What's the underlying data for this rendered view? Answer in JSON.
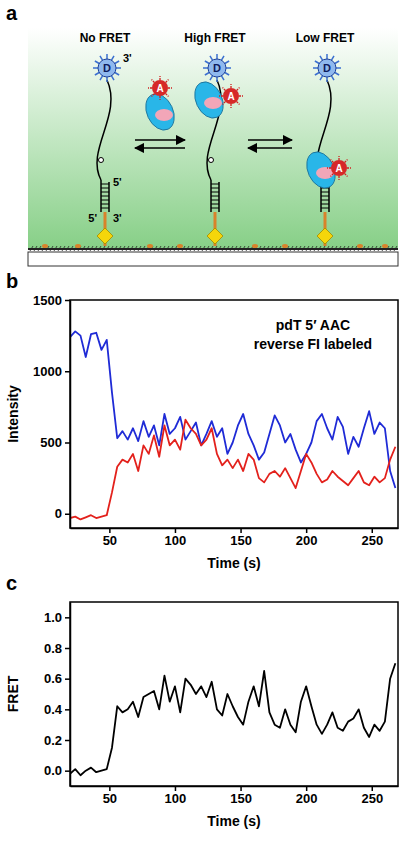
{
  "diagram": {
    "panel": "a",
    "states": [
      "No FRET",
      "High FRET",
      "Low FRET"
    ],
    "donor": "D",
    "acceptor": "A",
    "strand_ends": [
      "3'",
      "5'",
      "5'",
      "3'"
    ]
  },
  "chart_data": [
    {
      "panel": "b",
      "type": "line",
      "annotations": [
        "pdT 5′ AAC",
        "reverse FI labeled"
      ],
      "xlabel": "Time (s)",
      "ylabel": "Intensity",
      "xlim": [
        20,
        270
      ],
      "xticks": [
        50,
        100,
        150,
        200,
        250
      ],
      "ylim": [
        -100,
        1500
      ],
      "yticks": [
        0,
        500,
        1000,
        1500
      ],
      "x": [
        20,
        24,
        28,
        32,
        36,
        40,
        44,
        48,
        52,
        56,
        60,
        64,
        68,
        72,
        76,
        80,
        84,
        88,
        92,
        96,
        100,
        104,
        108,
        112,
        116,
        120,
        124,
        128,
        132,
        136,
        140,
        144,
        148,
        152,
        156,
        160,
        164,
        168,
        172,
        176,
        180,
        184,
        188,
        192,
        196,
        200,
        204,
        208,
        212,
        216,
        220,
        224,
        228,
        232,
        236,
        240,
        244,
        248,
        252,
        256,
        260,
        264,
        268
      ],
      "series": [
        {
          "color": "#1f2bd6",
          "values": [
            1240,
            1280,
            1250,
            1100,
            1260,
            1270,
            1150,
            1220,
            850,
            530,
            580,
            520,
            600,
            510,
            650,
            540,
            620,
            480,
            700,
            560,
            600,
            680,
            520,
            580,
            640,
            480,
            560,
            650,
            540,
            600,
            420,
            500,
            620,
            700,
            560,
            480,
            380,
            430,
            560,
            690,
            620,
            500,
            560,
            450,
            360,
            420,
            500,
            650,
            700,
            600,
            520,
            680,
            610,
            420,
            540,
            470,
            600,
            720,
            560,
            640,
            600,
            300,
            180
          ]
        },
        {
          "color": "#e3211c",
          "values": [
            -30,
            -20,
            -40,
            -25,
            -10,
            -30,
            -20,
            -10,
            150,
            330,
            380,
            360,
            420,
            300,
            480,
            420,
            550,
            400,
            620,
            480,
            520,
            450,
            660,
            600,
            560,
            480,
            520,
            600,
            420,
            340,
            380,
            320,
            380,
            300,
            420,
            380,
            250,
            220,
            280,
            300,
            260,
            320,
            250,
            180,
            300,
            420,
            360,
            280,
            220,
            240,
            300,
            260,
            230,
            200,
            250,
            300,
            220,
            200,
            260,
            220,
            250,
            380,
            470
          ]
        }
      ]
    },
    {
      "panel": "c",
      "type": "line",
      "xlabel": "Time (s)",
      "ylabel": "FRET",
      "xlim": [
        20,
        270
      ],
      "xticks": [
        50,
        100,
        150,
        200,
        250
      ],
      "ylim": [
        -0.1,
        1.1
      ],
      "yticks": [
        {
          "value": 0,
          "label": "0.0"
        },
        0.2,
        0.4,
        0.6,
        0.8,
        {
          "value": 1,
          "label": "1.0"
        }
      ],
      "x": [
        20,
        24,
        28,
        32,
        36,
        40,
        44,
        48,
        52,
        56,
        60,
        64,
        68,
        72,
        76,
        80,
        84,
        88,
        92,
        96,
        100,
        104,
        108,
        112,
        116,
        120,
        124,
        128,
        132,
        136,
        140,
        144,
        148,
        152,
        156,
        160,
        164,
        168,
        172,
        176,
        180,
        184,
        188,
        192,
        196,
        200,
        204,
        208,
        212,
        216,
        220,
        224,
        228,
        232,
        236,
        240,
        244,
        248,
        252,
        256,
        260,
        264,
        268
      ],
      "series": [
        {
          "color": "#000000",
          "values": [
            -0.02,
            0.01,
            -0.03,
            0.0,
            0.02,
            -0.01,
            0.0,
            0.01,
            0.15,
            0.42,
            0.38,
            0.4,
            0.45,
            0.35,
            0.48,
            0.5,
            0.52,
            0.4,
            0.62,
            0.45,
            0.55,
            0.38,
            0.6,
            0.56,
            0.5,
            0.55,
            0.48,
            0.58,
            0.4,
            0.36,
            0.5,
            0.42,
            0.35,
            0.3,
            0.45,
            0.55,
            0.42,
            0.65,
            0.38,
            0.3,
            0.28,
            0.4,
            0.3,
            0.25,
            0.45,
            0.55,
            0.42,
            0.3,
            0.24,
            0.3,
            0.38,
            0.28,
            0.26,
            0.32,
            0.34,
            0.4,
            0.28,
            0.22,
            0.3,
            0.26,
            0.32,
            0.6,
            0.7
          ]
        }
      ]
    }
  ]
}
